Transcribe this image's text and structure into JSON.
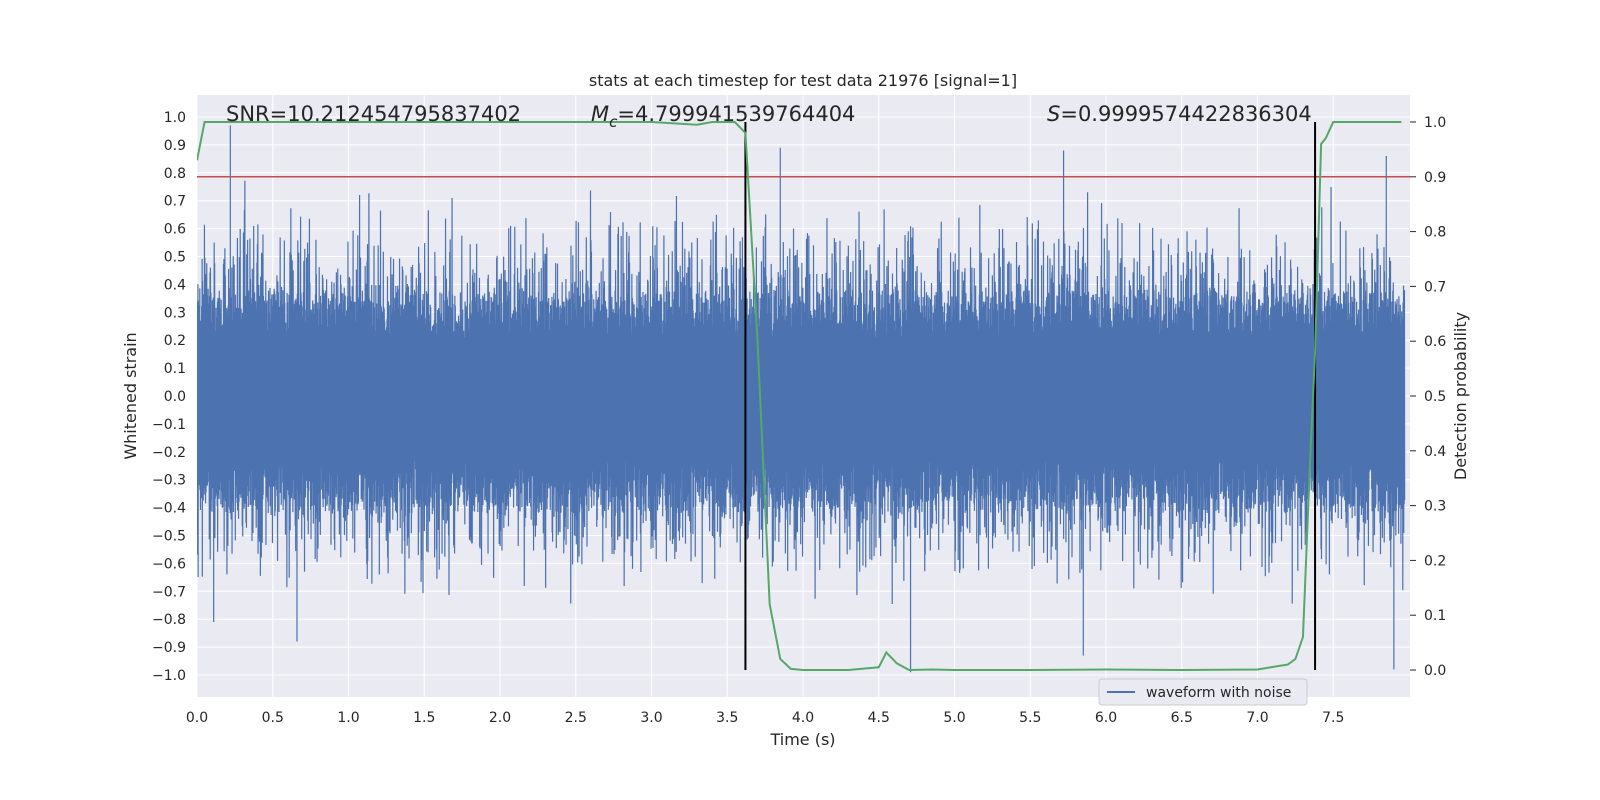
{
  "chart_data": {
    "type": "line",
    "title": "stats at each timestep for test data 21976 [signal=1]",
    "xlabel": "Time (s)",
    "ylabel": "Whitened strain",
    "y2label": "Detection probability",
    "xlim": [
      0.0,
      8.0
    ],
    "ylim": [
      -1.1,
      1.0
    ],
    "y2lim": [
      -0.05,
      1.01
    ],
    "xticks": [
      "0.0",
      "0.5",
      "1.0",
      "1.5",
      "2.0",
      "2.5",
      "3.0",
      "3.5",
      "4.0",
      "4.5",
      "5.0",
      "5.5",
      "6.0",
      "6.5",
      "7.0",
      "7.5"
    ],
    "xtick_values": [
      0.0,
      0.5,
      1.0,
      1.5,
      2.0,
      2.5,
      3.0,
      3.5,
      4.0,
      4.5,
      5.0,
      5.5,
      6.0,
      6.5,
      7.0,
      7.5
    ],
    "yticks": [
      "1.0",
      "0.9",
      "0.8",
      "0.7",
      "0.6",
      "0.5",
      "0.4",
      "0.3",
      "0.2",
      "0.1",
      "0.0",
      "−0.1",
      "−0.2",
      "−0.3",
      "−0.4",
      "−0.5",
      "−0.6",
      "−0.7",
      "−0.8",
      "−0.9",
      "−1.0"
    ],
    "ytick_values": [
      1.0,
      0.9,
      0.8,
      0.7,
      0.6,
      0.5,
      0.4,
      0.3,
      0.2,
      0.1,
      0.0,
      -0.1,
      -0.2,
      -0.3,
      -0.4,
      -0.5,
      -0.6,
      -0.7,
      -0.8,
      -0.9,
      -1.0
    ],
    "y2ticks": [
      "1.0",
      "0.9",
      "0.8",
      "0.7",
      "0.6",
      "0.5",
      "0.4",
      "0.3",
      "0.2",
      "0.1",
      "0.0"
    ],
    "y2tick_values": [
      1.0,
      0.9,
      0.8,
      0.7,
      0.6,
      0.5,
      0.4,
      0.3,
      0.2,
      0.1,
      0.0
    ],
    "annotations": {
      "snr": "SNR=10.212454795837402",
      "mc_symbol": "M",
      "mc_sub": "c",
      "mc_value": "=4.799941539764404",
      "s_symbol": "S",
      "s_value": "=0.9999574422836304"
    },
    "threshold_y2": 0.9,
    "vlines_x": [
      3.62,
      7.38
    ],
    "series": [
      {
        "name": "waveform with noise",
        "kind": "noise-waveform",
        "color": "#4c72b0",
        "core_band": [
          -0.42,
          0.38
        ],
        "spike_range": [
          -0.99,
          0.97
        ],
        "notable_spikes": [
          {
            "x": 0.22,
            "y": 0.97
          },
          {
            "x": 0.11,
            "y": -0.81
          },
          {
            "x": 0.66,
            "y": -0.88
          },
          {
            "x": 3.85,
            "y": 0.89
          },
          {
            "x": 4.71,
            "y": -0.99
          },
          {
            "x": 5.72,
            "y": 0.88
          },
          {
            "x": 5.85,
            "y": -0.93
          },
          {
            "x": 7.85,
            "y": 0.86
          },
          {
            "x": 7.9,
            "y": -0.98
          }
        ]
      },
      {
        "name": "detection probability",
        "axis": "right",
        "color": "#55a868",
        "x": [
          0.0,
          0.05,
          1.0,
          2.0,
          3.0,
          3.3,
          3.4,
          3.55,
          3.62,
          3.7,
          3.78,
          3.85,
          3.92,
          4.0,
          4.3,
          4.5,
          4.55,
          4.62,
          4.7,
          4.85,
          5.0,
          5.5,
          6.0,
          6.5,
          7.0,
          7.2,
          7.25,
          7.3,
          7.35,
          7.38,
          7.42,
          7.45,
          7.5,
          7.6,
          7.95
        ],
        "values": [
          0.93,
          1.0,
          1.0,
          1.0,
          1.0,
          0.995,
          1.0,
          1.0,
          0.98,
          0.6,
          0.12,
          0.02,
          0.002,
          0.0,
          0.0,
          0.005,
          0.032,
          0.012,
          0.0,
          0.001,
          0.0,
          0.0,
          0.001,
          0.0,
          0.001,
          0.01,
          0.02,
          0.06,
          0.4,
          0.58,
          0.96,
          0.97,
          1.0,
          1.0,
          1.0
        ]
      }
    ],
    "legend": {
      "label": "waveform with noise",
      "position": "lower-right"
    },
    "colors": {
      "background": "#eaeaf2",
      "grid": "#ffffff",
      "waveform": "#4c72b0",
      "probability": "#55a868",
      "threshold": "#c44e52",
      "vline": "#000000",
      "text": "#262626"
    }
  }
}
